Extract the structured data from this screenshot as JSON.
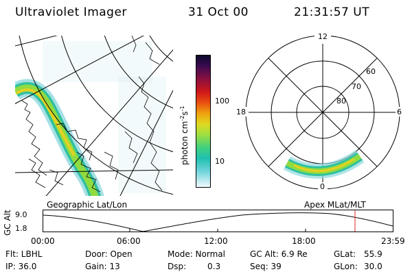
{
  "header": {
    "instrument": "Ultraviolet Imager",
    "date": "31 Oct 00",
    "time": "21:31:57 UT"
  },
  "colorbar": {
    "unit_label": "photon cm-2s-1",
    "ticks": [
      "100",
      "10"
    ],
    "colors": [
      "#0a0a2a",
      "#2a0a40",
      "#5a1060",
      "#8a1040",
      "#c01020",
      "#e04010",
      "#f08010",
      "#f0c010",
      "#d8e020",
      "#a0e040",
      "#40d080",
      "#20c0b0",
      "#60d0d8",
      "#c0e8f0",
      "#ffffff"
    ]
  },
  "polar_plot": {
    "clock_labels": [
      "12",
      "18",
      "6",
      "0"
    ],
    "lat_labels": [
      "60",
      "70",
      "80"
    ]
  },
  "panel_labels": {
    "left": "Geographic Lat/Lon",
    "right": "Apex MLat/MLT"
  },
  "alt_panel": {
    "ylabel": "GC Alt",
    "ytick_high": "9.0",
    "ytick_low": "1.8",
    "x_ticks": [
      "00:00",
      "06:00",
      "12:00",
      "18:00",
      "23:59"
    ],
    "current_time_marker": "21:31:57"
  },
  "info": {
    "row1": {
      "filter": "Flt: LBHL",
      "door": "Door: Open",
      "mode": "Mode: Normal",
      "gc_alt": "GC Alt: 6.9 Re",
      "glat_label": "GLat:",
      "glat_value": "55.9"
    },
    "row2": {
      "ip": "IP: 36.0",
      "gain": "Gain: 13",
      "dsp_label": "Dsp:",
      "dsp_value": "0.3",
      "seq": "Seq: 39",
      "glon_label": "GLon:",
      "glon_value": "30.0"
    }
  }
}
